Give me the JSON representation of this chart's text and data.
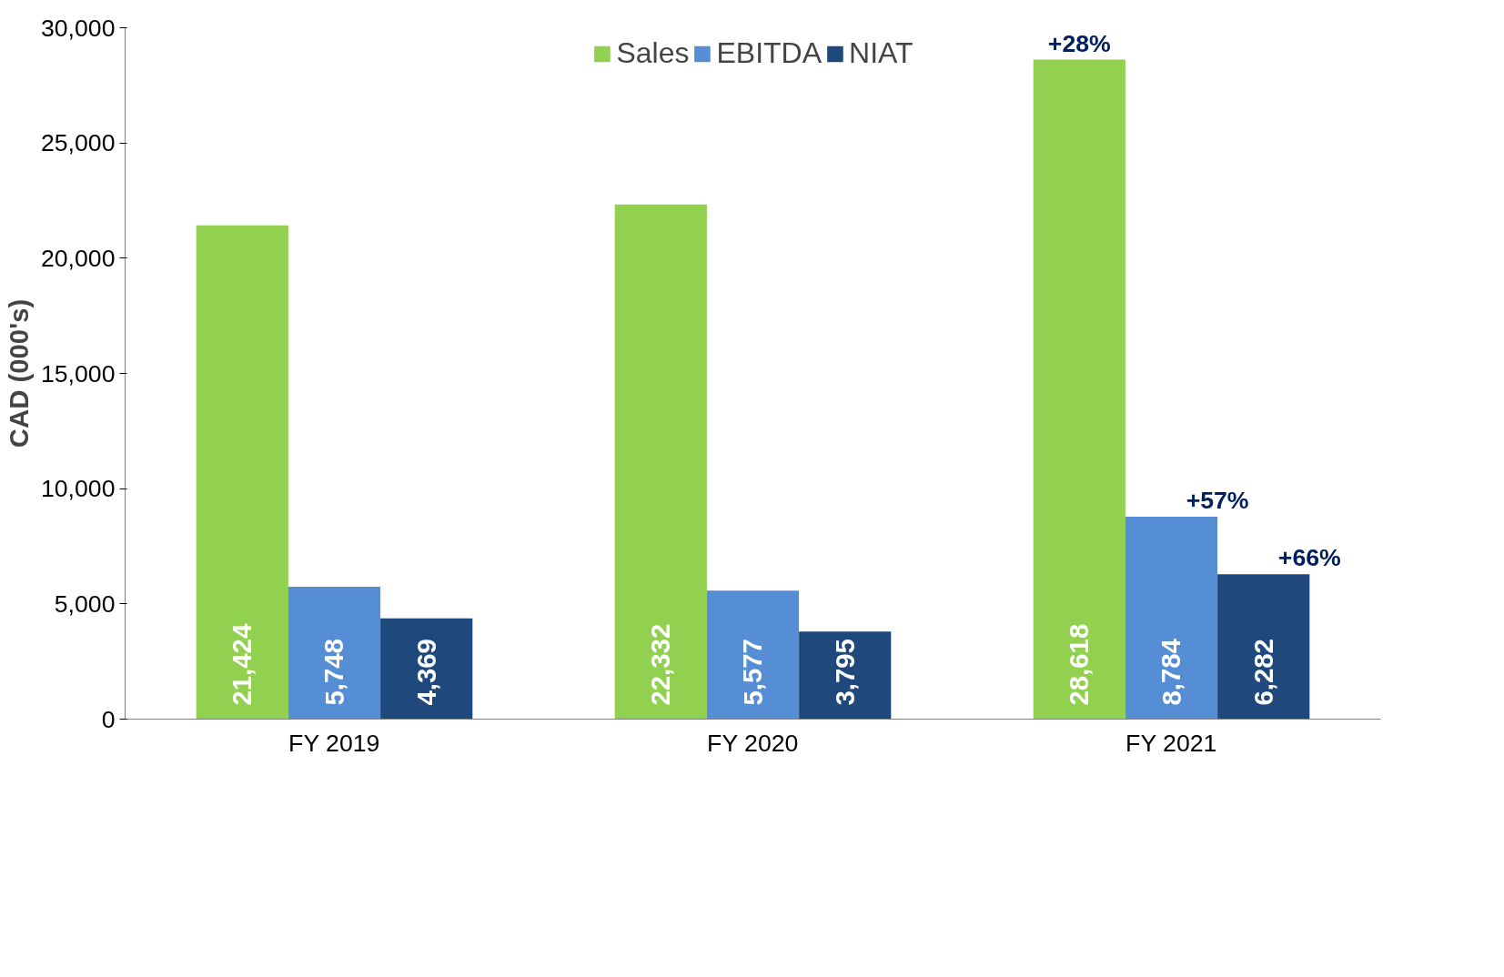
{
  "chart_data": {
    "type": "bar",
    "ylabel": "CAD (000's)",
    "categories": [
      "FY 2019",
      "FY 2020",
      "FY 2021"
    ],
    "series": [
      {
        "name": "Sales",
        "color": "#92d050",
        "values": [
          21424,
          22332,
          28618
        ],
        "value_labels": [
          "21,424",
          "22,332",
          "28,618"
        ]
      },
      {
        "name": "EBITDA",
        "color": "#558ed5",
        "values": [
          5748,
          5577,
          8784
        ],
        "value_labels": [
          "5,748",
          "5,577",
          "8,784"
        ]
      },
      {
        "name": "NIAT",
        "color": "#1f497d",
        "values": [
          4369,
          3795,
          6282
        ],
        "value_labels": [
          "4,369",
          "3,795",
          "6,282"
        ]
      }
    ],
    "ylim": [
      0,
      30000
    ],
    "yticks": [
      0,
      {
        "value": 5000,
        "label": "5,000"
      },
      {
        "value": 10000,
        "label": "10,000"
      },
      {
        "value": 15000,
        "label": "15,000"
      },
      {
        "value": 20000,
        "label": "20,000"
      },
      {
        "value": 25000,
        "label": "25,000"
      },
      {
        "value": 30000,
        "label": "30,000"
      }
    ],
    "grid": false,
    "legend": "top",
    "annotations": [
      "+28%",
      "+57%",
      "+66%"
    ]
  }
}
